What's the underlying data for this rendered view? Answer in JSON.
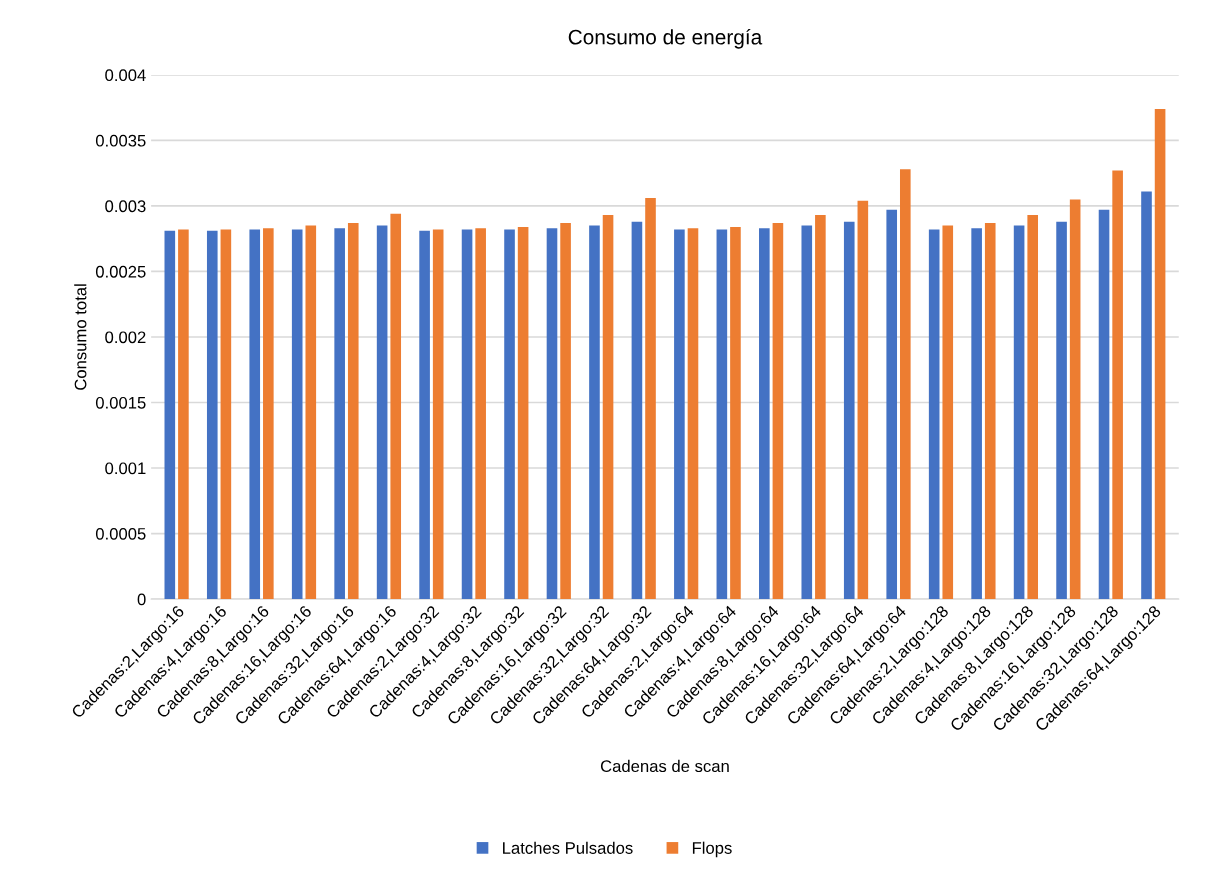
{
  "chart_data": {
    "type": "bar",
    "title": "Consumo de energía",
    "xlabel": "Cadenas de scan",
    "ylabel": "Consumo total",
    "categories": [
      "Cadenas:2,Largo:16",
      "Cadenas:4,Largo:16",
      "Cadenas:8,Largo:16",
      "Cadenas:16,Largo:16",
      "Cadenas:32,Largo:16",
      "Cadenas:64,Largo:16",
      "Cadenas:2,Largo:32",
      "Cadenas:4,Largo:32",
      "Cadenas:8,Largo:32",
      "Cadenas:16,Largo:32",
      "Cadenas:32,Largo:32",
      "Cadenas:64,Largo:32",
      "Cadenas:2,Largo:64",
      "Cadenas:4,Largo:64",
      "Cadenas:8,Largo:64",
      "Cadenas:16,Largo:64",
      "Cadenas:32,Largo:64",
      "Cadenas:64,Largo:64",
      "Cadenas:2,Largo:128",
      "Cadenas:4,Largo:128",
      "Cadenas:8,Largo:128",
      "Cadenas:16,Largo:128",
      "Cadenas:32,Largo:128",
      "Cadenas:64,Largo:128"
    ],
    "series": [
      {
        "name": "Latches Pulsados",
        "color": "#4472c4",
        "values": [
          0.00281,
          0.00281,
          0.00282,
          0.00282,
          0.00283,
          0.00285,
          0.00281,
          0.00282,
          0.00282,
          0.00283,
          0.00285,
          0.00288,
          0.00282,
          0.00282,
          0.00283,
          0.00285,
          0.00288,
          0.00297,
          0.00282,
          0.00283,
          0.00285,
          0.00288,
          0.00297,
          0.00311
        ]
      },
      {
        "name": "Flops",
        "color": "#ed7d31",
        "values": [
          0.00282,
          0.00282,
          0.00283,
          0.00285,
          0.00287,
          0.00294,
          0.00282,
          0.00283,
          0.00284,
          0.00287,
          0.00293,
          0.00306,
          0.00283,
          0.00284,
          0.00287,
          0.00293,
          0.00304,
          0.00328,
          0.00285,
          0.00287,
          0.00293,
          0.00305,
          0.00327,
          0.00374
        ]
      }
    ],
    "ylim": [
      0,
      0.004
    ],
    "yticks": [
      0,
      0.0005,
      0.001,
      0.0015,
      0.002,
      0.0025,
      0.003,
      0.0035,
      0.004
    ],
    "grid": "y",
    "legend": "bottom"
  }
}
